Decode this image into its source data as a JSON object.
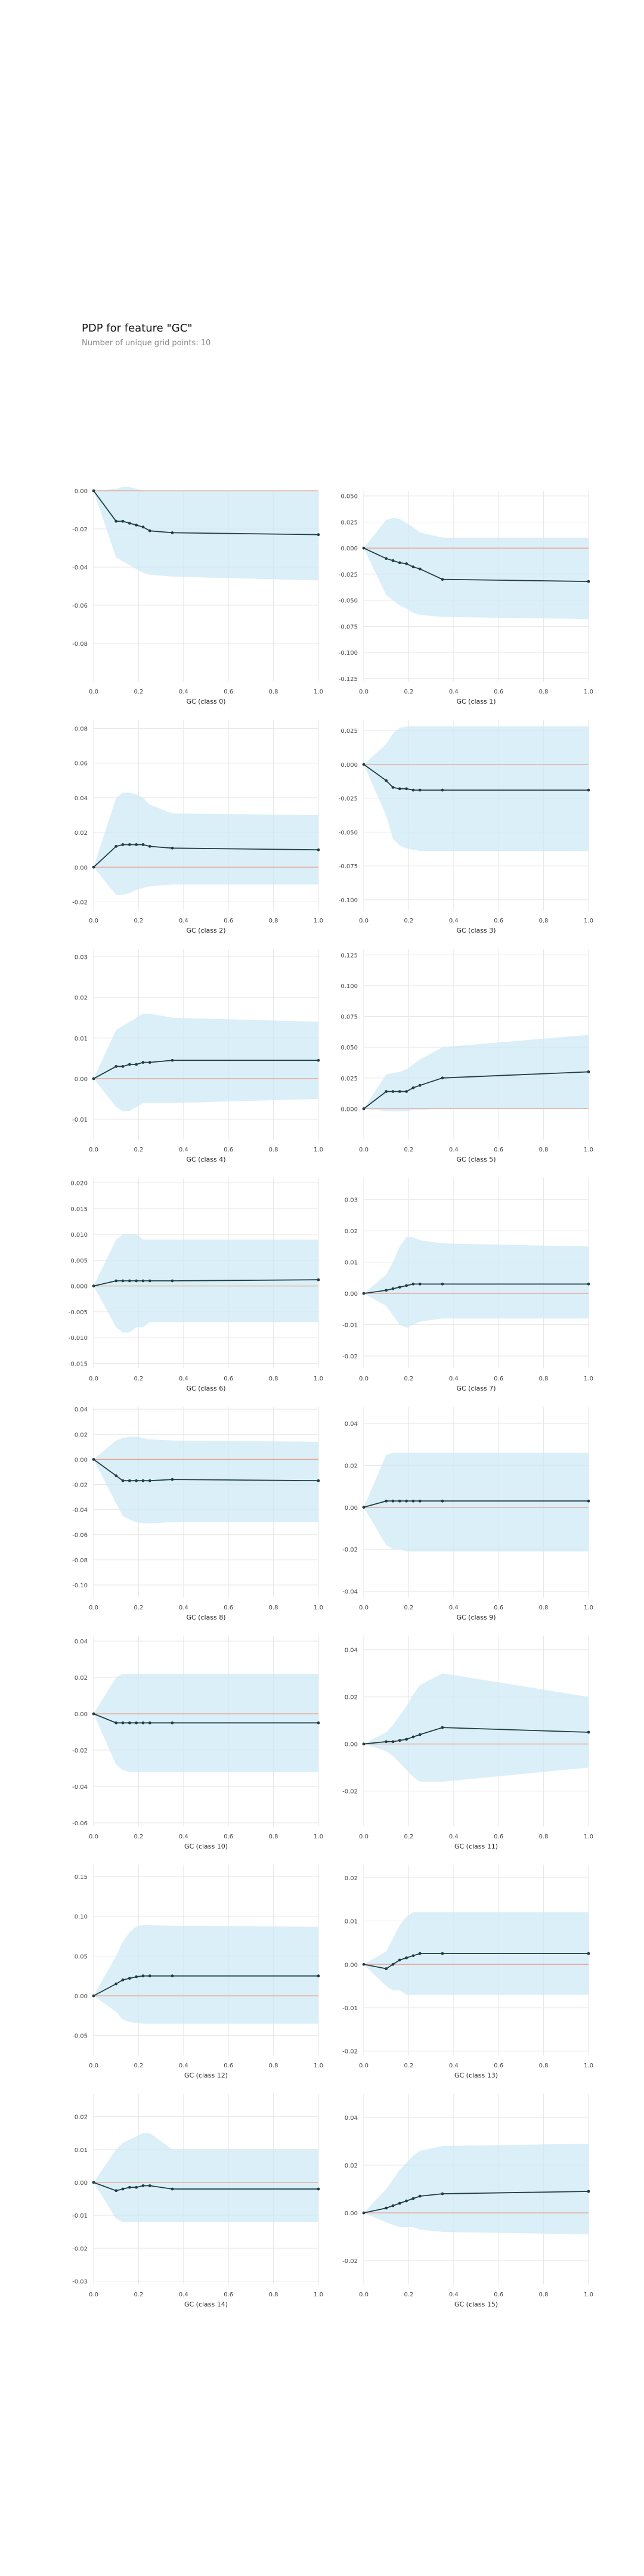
{
  "header": {
    "title": "PDP for feature \"GC\"",
    "subtitle": "Number of unique grid points: 10"
  },
  "colors": {
    "band": "#cde9f4",
    "line": "#1f3d45",
    "baseline": "#e8a090",
    "grid": "#e6e6e6",
    "tick_text": "#444444"
  },
  "chart_data": [
    {
      "type": "line",
      "xlabel": "GC (class 0)",
      "xlim": [
        0,
        1
      ],
      "ylim": [
        -0.1,
        0.0
      ],
      "yticks": [
        0.0,
        -0.02,
        -0.04,
        -0.06,
        -0.08
      ],
      "ytick_labels": [
        "0.00",
        "-0.02",
        "-0.04",
        "-0.06",
        "-0.08"
      ],
      "x": [
        0,
        0.1,
        0.13,
        0.16,
        0.19,
        0.22,
        0.25,
        0.35,
        1.0
      ],
      "y": [
        0,
        -0.016,
        -0.016,
        -0.017,
        -0.018,
        -0.019,
        -0.021,
        -0.022,
        -0.023
      ],
      "upper": [
        0,
        0.001,
        0.002,
        0.002,
        0.001,
        0.0,
        0.0,
        0.0,
        0.0
      ],
      "lower": [
        0,
        -0.035,
        -0.037,
        -0.039,
        -0.041,
        -0.043,
        -0.044,
        -0.045,
        -0.047
      ]
    },
    {
      "type": "line",
      "xlabel": "GC (class 1)",
      "xlim": [
        0,
        1
      ],
      "ylim": [
        -0.128,
        0.055
      ],
      "yticks": [
        0.05,
        0.025,
        0.0,
        -0.025,
        -0.05,
        -0.075,
        -0.1,
        -0.125
      ],
      "ytick_labels": [
        "0.050",
        "0.025",
        "0.000",
        "-0.025",
        "-0.050",
        "-0.075",
        "-0.100",
        "-0.125"
      ],
      "x": [
        0,
        0.1,
        0.13,
        0.16,
        0.19,
        0.22,
        0.25,
        0.35,
        1.0
      ],
      "y": [
        0,
        -0.01,
        -0.012,
        -0.014,
        -0.015,
        -0.018,
        -0.02,
        -0.03,
        -0.032
      ],
      "upper": [
        0,
        0.027,
        0.029,
        0.028,
        0.024,
        0.02,
        0.015,
        0.01,
        0.01
      ],
      "lower": [
        0,
        -0.045,
        -0.05,
        -0.055,
        -0.058,
        -0.062,
        -0.064,
        -0.066,
        -0.068
      ]
    },
    {
      "type": "line",
      "xlabel": "GC (class 2)",
      "xlim": [
        0,
        1
      ],
      "ylim": [
        -0.025,
        0.085
      ],
      "yticks": [
        0.08,
        0.06,
        0.04,
        0.02,
        0.0,
        -0.02
      ],
      "ytick_labels": [
        "0.08",
        "0.06",
        "0.04",
        "0.02",
        "0.00",
        "-0.02"
      ],
      "x": [
        0,
        0.1,
        0.13,
        0.16,
        0.19,
        0.22,
        0.25,
        0.35,
        1.0
      ],
      "y": [
        0,
        0.012,
        0.013,
        0.013,
        0.013,
        0.013,
        0.012,
        0.011,
        0.01
      ],
      "upper": [
        0,
        0.04,
        0.043,
        0.043,
        0.042,
        0.04,
        0.036,
        0.031,
        0.03
      ],
      "lower": [
        0,
        -0.016,
        -0.016,
        -0.015,
        -0.013,
        -0.012,
        -0.011,
        -0.01,
        -0.01
      ]
    },
    {
      "type": "line",
      "xlabel": "GC (class 3)",
      "xlim": [
        0,
        1
      ],
      "ylim": [
        -0.108,
        0.033
      ],
      "yticks": [
        0.025,
        0.0,
        -0.025,
        -0.05,
        -0.075,
        -0.1
      ],
      "ytick_labels": [
        "0.025",
        "0.000",
        "-0.025",
        "-0.050",
        "-0.075",
        "-0.100"
      ],
      "x": [
        0,
        0.1,
        0.13,
        0.16,
        0.19,
        0.22,
        0.25,
        0.35,
        1.0
      ],
      "y": [
        0,
        -0.012,
        -0.017,
        -0.018,
        -0.018,
        -0.019,
        -0.019,
        -0.019,
        -0.019
      ],
      "upper": [
        0,
        0.015,
        0.023,
        0.027,
        0.028,
        0.028,
        0.028,
        0.028,
        0.028
      ],
      "lower": [
        0,
        -0.038,
        -0.055,
        -0.06,
        -0.062,
        -0.063,
        -0.064,
        -0.064,
        -0.064
      ]
    },
    {
      "type": "line",
      "xlabel": "GC (class 4)",
      "xlim": [
        0,
        1
      ],
      "ylim": [
        -0.015,
        0.032
      ],
      "yticks": [
        0.03,
        0.02,
        0.01,
        0.0,
        -0.01
      ],
      "ytick_labels": [
        "0.03",
        "0.02",
        "0.01",
        "0.00",
        "-0.01"
      ],
      "x": [
        0,
        0.1,
        0.13,
        0.16,
        0.19,
        0.22,
        0.25,
        0.35,
        1.0
      ],
      "y": [
        0,
        0.003,
        0.003,
        0.0035,
        0.0035,
        0.004,
        0.004,
        0.0045,
        0.0045
      ],
      "upper": [
        0,
        0.012,
        0.013,
        0.014,
        0.015,
        0.016,
        0.016,
        0.015,
        0.014
      ],
      "lower": [
        0,
        -0.007,
        -0.008,
        -0.008,
        -0.007,
        -0.006,
        -0.006,
        -0.006,
        -0.005
      ]
    },
    {
      "type": "line",
      "xlabel": "GC (class 5)",
      "xlim": [
        0,
        1
      ],
      "ylim": [
        -0.025,
        0.13
      ],
      "yticks": [
        0.125,
        0.1,
        0.075,
        0.05,
        0.025,
        0.0
      ],
      "ytick_labels": [
        "0.125",
        "0.100",
        "0.075",
        "0.050",
        "0.025",
        "0.000"
      ],
      "x": [
        0,
        0.1,
        0.13,
        0.16,
        0.19,
        0.22,
        0.25,
        0.35,
        1.0
      ],
      "y": [
        0,
        0.014,
        0.014,
        0.014,
        0.014,
        0.017,
        0.019,
        0.025,
        0.03
      ],
      "upper": [
        0,
        0.028,
        0.029,
        0.03,
        0.032,
        0.036,
        0.04,
        0.05,
        0.06
      ],
      "lower": [
        0,
        -0.002,
        -0.002,
        -0.002,
        -0.002,
        -0.001,
        -0.001,
        0.0,
        0.0
      ]
    },
    {
      "type": "line",
      "xlabel": "GC (class 6)",
      "xlim": [
        0,
        1
      ],
      "ylim": [
        -0.016,
        0.021
      ],
      "yticks": [
        0.02,
        0.015,
        0.01,
        0.005,
        0.0,
        -0.005,
        -0.01,
        -0.015
      ],
      "ytick_labels": [
        "0.020",
        "0.015",
        "0.010",
        "0.005",
        "0.000",
        "-0.005",
        "-0.010",
        "-0.015"
      ],
      "x": [
        0,
        0.1,
        0.13,
        0.16,
        0.19,
        0.22,
        0.25,
        0.35,
        1.0
      ],
      "y": [
        0,
        0.001,
        0.001,
        0.001,
        0.001,
        0.001,
        0.001,
        0.001,
        0.0012
      ],
      "upper": [
        0,
        0.009,
        0.01,
        0.01,
        0.01,
        0.009,
        0.009,
        0.009,
        0.009
      ],
      "lower": [
        0,
        -0.008,
        -0.009,
        -0.009,
        -0.008,
        -0.008,
        -0.007,
        -0.007,
        -0.007
      ]
    },
    {
      "type": "line",
      "xlabel": "GC (class 7)",
      "xlim": [
        0,
        1
      ],
      "ylim": [
        -0.024,
        0.037
      ],
      "yticks": [
        0.03,
        0.02,
        0.01,
        0.0,
        -0.01,
        -0.02
      ],
      "ytick_labels": [
        "0.03",
        "0.02",
        "0.01",
        "0.00",
        "-0.01",
        "-0.02"
      ],
      "x": [
        0,
        0.1,
        0.13,
        0.16,
        0.19,
        0.22,
        0.25,
        0.35,
        1.0
      ],
      "y": [
        0,
        0.001,
        0.0015,
        0.002,
        0.0025,
        0.003,
        0.003,
        0.003,
        0.003
      ],
      "upper": [
        0,
        0.006,
        0.01,
        0.015,
        0.018,
        0.018,
        0.017,
        0.016,
        0.015
      ],
      "lower": [
        0,
        -0.004,
        -0.007,
        -0.01,
        -0.011,
        -0.01,
        -0.009,
        -0.008,
        -0.008
      ]
    },
    {
      "type": "line",
      "xlabel": "GC (class 8)",
      "xlim": [
        0,
        1
      ],
      "ylim": [
        -0.11,
        0.042
      ],
      "yticks": [
        0.04,
        0.02,
        0.0,
        -0.02,
        -0.04,
        -0.06,
        -0.08,
        -0.1
      ],
      "ytick_labels": [
        "0.04",
        "0.02",
        "0.00",
        "-0.02",
        "-0.04",
        "-0.06",
        "-0.08",
        "-0.10"
      ],
      "x": [
        0,
        0.1,
        0.13,
        0.16,
        0.19,
        0.22,
        0.25,
        0.35,
        1.0
      ],
      "y": [
        0,
        -0.013,
        -0.017,
        -0.017,
        -0.017,
        -0.017,
        -0.017,
        -0.016,
        -0.017
      ],
      "upper": [
        0,
        0.015,
        0.017,
        0.018,
        0.018,
        0.017,
        0.016,
        0.015,
        0.014
      ],
      "lower": [
        0,
        -0.035,
        -0.045,
        -0.048,
        -0.05,
        -0.051,
        -0.051,
        -0.05,
        -0.05
      ]
    },
    {
      "type": "line",
      "xlabel": "GC (class 9)",
      "xlim": [
        0,
        1
      ],
      "ylim": [
        -0.043,
        0.048
      ],
      "yticks": [
        0.04,
        0.02,
        0.0,
        -0.02,
        -0.04
      ],
      "ytick_labels": [
        "0.04",
        "0.02",
        "0.00",
        "-0.02",
        "-0.04"
      ],
      "x": [
        0,
        0.1,
        0.13,
        0.16,
        0.19,
        0.22,
        0.25,
        0.35,
        1.0
      ],
      "y": [
        0,
        0.003,
        0.003,
        0.003,
        0.003,
        0.003,
        0.003,
        0.003,
        0.003
      ],
      "upper": [
        0,
        0.025,
        0.026,
        0.026,
        0.026,
        0.026,
        0.026,
        0.026,
        0.026
      ],
      "lower": [
        0,
        -0.018,
        -0.02,
        -0.02,
        -0.021,
        -0.021,
        -0.021,
        -0.021,
        -0.021
      ]
    },
    {
      "type": "line",
      "xlabel": "GC (class 10)",
      "xlim": [
        0,
        1
      ],
      "ylim": [
        -0.062,
        0.043
      ],
      "yticks": [
        0.04,
        0.02,
        0.0,
        -0.02,
        -0.04,
        -0.06
      ],
      "ytick_labels": [
        "0.04",
        "0.02",
        "0.00",
        "-0.02",
        "-0.04",
        "-0.06"
      ],
      "x": [
        0,
        0.1,
        0.13,
        0.16,
        0.19,
        0.22,
        0.25,
        0.35,
        1.0
      ],
      "y": [
        0,
        -0.005,
        -0.005,
        -0.005,
        -0.005,
        -0.005,
        -0.005,
        -0.005,
        -0.005
      ],
      "upper": [
        0,
        0.02,
        0.022,
        0.022,
        0.022,
        0.022,
        0.022,
        0.022,
        0.022
      ],
      "lower": [
        0,
        -0.028,
        -0.031,
        -0.032,
        -0.032,
        -0.032,
        -0.032,
        -0.032,
        -0.032
      ]
    },
    {
      "type": "line",
      "xlabel": "GC (class 11)",
      "xlim": [
        0,
        1
      ],
      "ylim": [
        -0.035,
        0.046
      ],
      "yticks": [
        0.04,
        0.02,
        0.0,
        -0.02
      ],
      "ytick_labels": [
        "0.04",
        "0.02",
        "0.00",
        "-0.02"
      ],
      "x": [
        0,
        0.1,
        0.13,
        0.16,
        0.19,
        0.22,
        0.25,
        0.35,
        1.0
      ],
      "y": [
        0,
        0.001,
        0.001,
        0.0015,
        0.002,
        0.003,
        0.004,
        0.007,
        0.005
      ],
      "upper": [
        0,
        0.005,
        0.008,
        0.012,
        0.016,
        0.021,
        0.025,
        0.03,
        0.02
      ],
      "lower": [
        0,
        -0.003,
        -0.005,
        -0.008,
        -0.011,
        -0.014,
        -0.016,
        -0.016,
        -0.01
      ]
    },
    {
      "type": "line",
      "xlabel": "GC (class 12)",
      "xlim": [
        0,
        1
      ],
      "ylim": [
        -0.075,
        0.165
      ],
      "yticks": [
        0.15,
        0.1,
        0.05,
        0.0,
        -0.05
      ],
      "ytick_labels": [
        "0.15",
        "0.10",
        "0.05",
        "0.00",
        "-0.05"
      ],
      "x": [
        0,
        0.1,
        0.13,
        0.16,
        0.19,
        0.22,
        0.25,
        0.35,
        1.0
      ],
      "y": [
        0,
        0.015,
        0.02,
        0.022,
        0.024,
        0.025,
        0.025,
        0.025,
        0.025
      ],
      "upper": [
        0,
        0.05,
        0.068,
        0.08,
        0.087,
        0.089,
        0.089,
        0.088,
        0.087
      ],
      "lower": [
        0,
        -0.02,
        -0.03,
        -0.033,
        -0.034,
        -0.035,
        -0.035,
        -0.035,
        -0.035
      ]
    },
    {
      "type": "line",
      "xlabel": "GC (class 13)",
      "xlim": [
        0,
        1
      ],
      "ylim": [
        -0.021,
        0.023
      ],
      "yticks": [
        0.02,
        0.01,
        0.0,
        -0.01,
        -0.02
      ],
      "ytick_labels": [
        "0.02",
        "0.01",
        "0.00",
        "-0.01",
        "-0.02"
      ],
      "x": [
        0,
        0.1,
        0.13,
        0.16,
        0.19,
        0.22,
        0.25,
        0.35,
        1.0
      ],
      "y": [
        0,
        -0.001,
        0.0,
        0.001,
        0.0015,
        0.002,
        0.0025,
        0.0025,
        0.0025
      ],
      "upper": [
        0,
        0.003,
        0.006,
        0.009,
        0.011,
        0.012,
        0.012,
        0.012,
        0.012
      ],
      "lower": [
        0,
        -0.005,
        -0.006,
        -0.006,
        -0.007,
        -0.007,
        -0.007,
        -0.007,
        -0.007
      ]
    },
    {
      "type": "line",
      "xlabel": "GC (class 14)",
      "xlim": [
        0,
        1
      ],
      "ylim": [
        -0.031,
        0.027
      ],
      "yticks": [
        0.02,
        0.01,
        0.0,
        -0.01,
        -0.02,
        -0.03
      ],
      "ytick_labels": [
        "0.02",
        "0.01",
        "0.00",
        "-0.01",
        "-0.02",
        "-0.03"
      ],
      "x": [
        0,
        0.1,
        0.13,
        0.16,
        0.19,
        0.22,
        0.25,
        0.35,
        1.0
      ],
      "y": [
        0,
        -0.0025,
        -0.002,
        -0.0015,
        -0.0015,
        -0.001,
        -0.001,
        -0.002,
        -0.002
      ],
      "upper": [
        0,
        0.01,
        0.012,
        0.013,
        0.014,
        0.015,
        0.015,
        0.01,
        0.01
      ],
      "lower": [
        0,
        -0.011,
        -0.012,
        -0.012,
        -0.012,
        -0.012,
        -0.012,
        -0.012,
        -0.012
      ]
    },
    {
      "type": "line",
      "xlabel": "GC (class 15)",
      "xlim": [
        0,
        1
      ],
      "ylim": [
        -0.03,
        0.05
      ],
      "yticks": [
        0.04,
        0.02,
        0.0,
        -0.02
      ],
      "ytick_labels": [
        "0.04",
        "0.02",
        "0.00",
        "-0.02"
      ],
      "x": [
        0,
        0.1,
        0.13,
        0.16,
        0.19,
        0.22,
        0.25,
        0.35,
        1.0
      ],
      "y": [
        0,
        0.002,
        0.003,
        0.004,
        0.005,
        0.006,
        0.007,
        0.008,
        0.009
      ],
      "upper": [
        0,
        0.01,
        0.014,
        0.018,
        0.021,
        0.024,
        0.026,
        0.028,
        0.029
      ],
      "lower": [
        0,
        -0.004,
        -0.005,
        -0.006,
        -0.006,
        -0.006,
        -0.007,
        -0.008,
        -0.009
      ]
    }
  ]
}
